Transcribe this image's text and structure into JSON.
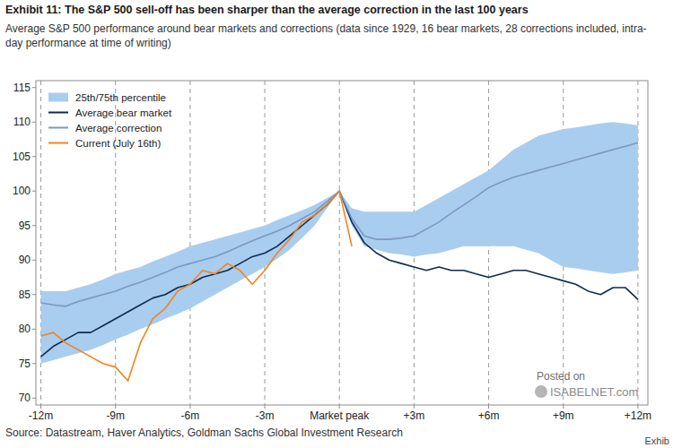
{
  "chart_data": {
    "type": "line",
    "title": "Exhibit 11: The S&P 500 sell-off has been sharper than the average correction in the last 100 years",
    "subtitle": "Average S&P 500 performance around bear markets and corrections (data since 1929, 16 bear markets, 28 corrections included, intra-day performance at time of writing)",
    "source": "Source: Datastream, Haver Analytics, Goldman Sachs Global Investment Research",
    "annotations": [
      "Posted on",
      "ISABELNET.com",
      "Exhib"
    ],
    "legend": "upper left",
    "grid": true,
    "xlim": [
      -12.2,
      12.4
    ],
    "ylim": [
      69,
      116
    ],
    "xticks": [
      {
        "value": -12,
        "label": "-12m"
      },
      {
        "value": -9,
        "label": "-9m"
      },
      {
        "value": -6,
        "label": "-6m"
      },
      {
        "value": -3,
        "label": "-3m"
      },
      {
        "value": 0,
        "label": "Market peak"
      },
      {
        "value": 3,
        "label": "+3m"
      },
      {
        "value": 6,
        "label": "+6m"
      },
      {
        "value": 9,
        "label": "+9m"
      },
      {
        "value": 12,
        "label": "+12m"
      }
    ],
    "yticks": [
      70,
      75,
      80,
      85,
      90,
      95,
      100,
      105,
      110,
      115
    ],
    "x": [
      -12,
      -11.5,
      -11,
      -10.5,
      -10,
      -9.5,
      -9,
      -8.5,
      -8,
      -7.5,
      -7,
      -6.5,
      -6,
      -5.5,
      -5,
      -4.5,
      -4,
      -3.5,
      -3,
      -2.5,
      -2,
      -1.5,
      -1,
      -0.5,
      0,
      0.5,
      1,
      1.5,
      2,
      2.5,
      3,
      3.5,
      4,
      4.5,
      5,
      5.5,
      6,
      6.5,
      7,
      7.5,
      8,
      8.5,
      9,
      9.5,
      10,
      10.5,
      11,
      11.5,
      12
    ],
    "series": [
      {
        "name": "25th/75th percentile",
        "type": "band",
        "color": "#a9cdee",
        "low": [
          75,
          75.5,
          76,
          76.5,
          77,
          77.7,
          78.5,
          79.2,
          80,
          80.7,
          81.5,
          82.2,
          83,
          84,
          85,
          86,
          87,
          88,
          89,
          90.2,
          91.5,
          93.2,
          95,
          97.5,
          100,
          95,
          92,
          91.5,
          91,
          90.8,
          90.5,
          90.8,
          91,
          91.5,
          92,
          92,
          92,
          92,
          92,
          91.5,
          91,
          90,
          89,
          88.8,
          88.5,
          88.2,
          88,
          88.2,
          88.5
        ],
        "high": [
          85.5,
          85.5,
          85.5,
          86,
          86.5,
          87.2,
          88,
          88.5,
          89,
          89.8,
          90.5,
          91.2,
          92,
          92.5,
          93,
          93.5,
          94,
          94.5,
          95,
          95.8,
          96.5,
          97.2,
          98,
          99,
          100,
          97.5,
          97,
          97,
          97,
          97,
          97,
          98,
          99,
          100,
          101,
          102,
          103,
          104.5,
          106,
          107,
          108,
          108.5,
          109,
          109.2,
          109.5,
          109.8,
          110,
          109.8,
          109.5
        ]
      },
      {
        "name": "Average bear market",
        "type": "line",
        "color": "#0f2a4f",
        "values": [
          76,
          77.5,
          78.5,
          79.5,
          79.5,
          80.5,
          81.5,
          82.5,
          83.5,
          84.5,
          85,
          86,
          86.5,
          87.5,
          88,
          88.5,
          89.5,
          90.5,
          91,
          92,
          93.5,
          95,
          96.5,
          98,
          100,
          95.5,
          92.5,
          91,
          90,
          89.5,
          89,
          88.5,
          89,
          88.5,
          88.5,
          88,
          87.5,
          88,
          88.5,
          88.5,
          88,
          87.5,
          87,
          86.5,
          85.5,
          85,
          86,
          86,
          84.3
        ]
      },
      {
        "name": "Average correction",
        "type": "line",
        "color": "#7d97c4",
        "values": [
          83.8,
          83.5,
          83.3,
          84,
          84.5,
          85,
          85.5,
          86.2,
          86.8,
          87.5,
          88.2,
          89,
          89.5,
          90,
          90.5,
          91.2,
          92,
          92.8,
          93.5,
          94.2,
          95,
          96,
          97,
          98.5,
          100,
          96,
          93.5,
          93,
          93,
          93.2,
          93.5,
          94.5,
          95.5,
          96.8,
          98,
          99.2,
          100.5,
          101.3,
          102,
          102.5,
          103,
          103.5,
          104,
          104.5,
          105,
          105.5,
          106,
          106.5,
          107
        ]
      },
      {
        "name": "Current (July 16th)",
        "type": "line",
        "color": "#f58220",
        "values": [
          79,
          79.5,
          78,
          77,
          76,
          75,
          74.5,
          72.5,
          78,
          81.5,
          83,
          85.5,
          86.5,
          88.5,
          88,
          89.5,
          88.5,
          86.5,
          88.5,
          91,
          93,
          95.5,
          96.5,
          98,
          100,
          92,
          null,
          null,
          null,
          null,
          null,
          null,
          null,
          null,
          null,
          null,
          null,
          null,
          null,
          null,
          null,
          null,
          null,
          null,
          null,
          null,
          null,
          null,
          null
        ]
      }
    ]
  }
}
